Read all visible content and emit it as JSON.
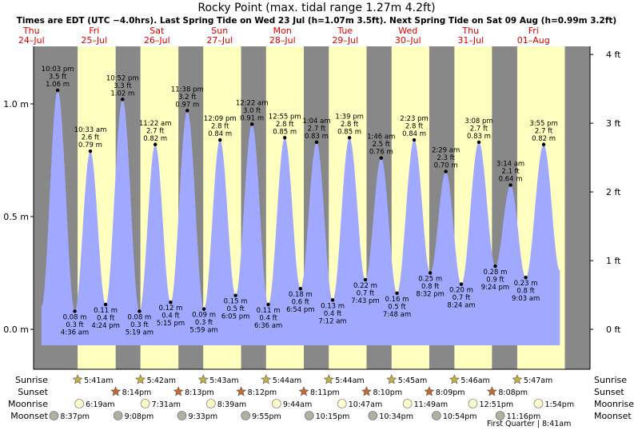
{
  "title": "Rocky Point (max. tidal range 1.27m 4.2ft)",
  "subtitle": "Times are EDT (UTC −4.0hrs). Last Spring Tide on Wed 23 Jul (h=1.07m 3.5ft). Next Spring Tide on Sat 09 Aug (h=0.99m 3.2ft)",
  "colors": {
    "night": "#888888",
    "day": "#ffffc0",
    "tide_fill": "#a0a8ff",
    "date_red": "#e00000",
    "sun": "#c8b040",
    "sunset_star": "#c86830",
    "moon_rise": "#ffffd0",
    "moon_set": "#b0b0a0"
  },
  "row_labels": {
    "sunrise": "Sunrise",
    "sunset": "Sunset",
    "moonrise": "Moonrise",
    "moonset": "Moonset"
  },
  "moon_phase_note": "First Quarter | 8:41am",
  "chart_data": {
    "type": "area",
    "y_left": {
      "unit": "m",
      "ticks": [
        0.0,
        0.5,
        1.0
      ],
      "labels": [
        "0.0 m",
        "0.5 m",
        "1.0 m"
      ],
      "range": [
        -0.16,
        1.36
      ]
    },
    "y_right": {
      "unit": "ft",
      "ticks": [
        0,
        1,
        2,
        3,
        4
      ],
      "labels": [
        "0 ft",
        "1 ft",
        "2 ft",
        "3 ft",
        "4 ft"
      ]
    },
    "days": [
      {
        "day": "Thu",
        "date": "24–Jul"
      },
      {
        "day": "Fri",
        "date": "25–Jul"
      },
      {
        "day": "Sat",
        "date": "26–Jul"
      },
      {
        "day": "Sun",
        "date": "27–Jul"
      },
      {
        "day": "Mon",
        "date": "28–Jul"
      },
      {
        "day": "Tue",
        "date": "29–Jul"
      },
      {
        "day": "Wed",
        "date": "30–Jul"
      },
      {
        "day": "Thu",
        "date": "31–Jul"
      },
      {
        "day": "Fri",
        "date": "01–Aug"
      }
    ],
    "tides": [
      {
        "type": "high",
        "time": "10:03 pm",
        "ft": "3.5 ft",
        "m": 1.06,
        "ml": "1.06 m"
      },
      {
        "type": "low",
        "time": "4:36 am",
        "ft": "0.3 ft",
        "m": 0.08,
        "ml": "0.08 m"
      },
      {
        "type": "high",
        "time": "10:33 am",
        "ft": "2.6 ft",
        "m": 0.79,
        "ml": "0.79 m"
      },
      {
        "type": "low",
        "time": "4:24 pm",
        "ft": "0.4 ft",
        "m": 0.11,
        "ml": "0.11 m"
      },
      {
        "type": "high",
        "time": "10:52 pm",
        "ft": "3.3 ft",
        "m": 1.02,
        "ml": "1.02 m"
      },
      {
        "type": "low",
        "time": "5:19 am",
        "ft": "0.3 ft",
        "m": 0.08,
        "ml": "0.08 m"
      },
      {
        "type": "high",
        "time": "11:22 am",
        "ft": "2.7 ft",
        "m": 0.82,
        "ml": "0.82 m"
      },
      {
        "type": "low",
        "time": "5:15 pm",
        "ft": "0.4 ft",
        "m": 0.12,
        "ml": "0.12 m"
      },
      {
        "type": "high",
        "time": "11:38 pm",
        "ft": "3.2 ft",
        "m": 0.97,
        "ml": "0.97 m"
      },
      {
        "type": "low",
        "time": "5:59 am",
        "ft": "0.3 ft",
        "m": 0.09,
        "ml": "0.09 m"
      },
      {
        "type": "high",
        "time": "12:09 pm",
        "ft": "2.8 ft",
        "m": 0.84,
        "ml": "0.84 m"
      },
      {
        "type": "low",
        "time": "6:05 pm",
        "ft": "0.5 ft",
        "m": 0.15,
        "ml": "0.15 m"
      },
      {
        "type": "high",
        "time": "12:22 am",
        "ft": "3.0 ft",
        "m": 0.91,
        "ml": "0.91 m"
      },
      {
        "type": "low",
        "time": "6:36 am",
        "ft": "0.4 ft",
        "m": 0.11,
        "ml": "0.11 m"
      },
      {
        "type": "high",
        "time": "12:55 pm",
        "ft": "2.8 ft",
        "m": 0.85,
        "ml": "0.85 m"
      },
      {
        "type": "low",
        "time": "6:54 pm",
        "ft": "0.6 ft",
        "m": 0.18,
        "ml": "0.18 m"
      },
      {
        "type": "high",
        "time": "1:04 am",
        "ft": "2.7 ft",
        "m": 0.83,
        "ml": "0.83 m"
      },
      {
        "type": "low",
        "time": "7:12 am",
        "ft": "0.4 ft",
        "m": 0.13,
        "ml": "0.13 m"
      },
      {
        "type": "high",
        "time": "1:39 pm",
        "ft": "2.8 ft",
        "m": 0.85,
        "ml": "0.85 m"
      },
      {
        "type": "low",
        "time": "7:43 pm",
        "ft": "0.7 ft",
        "m": 0.22,
        "ml": "0.22 m"
      },
      {
        "type": "high",
        "time": "1:46 am",
        "ft": "2.5 ft",
        "m": 0.76,
        "ml": "0.76 m"
      },
      {
        "type": "low",
        "time": "7:48 am",
        "ft": "0.5 ft",
        "m": 0.16,
        "ml": "0.16 m"
      },
      {
        "type": "high",
        "time": "2:23 pm",
        "ft": "2.8 ft",
        "m": 0.84,
        "ml": "0.84 m"
      },
      {
        "type": "low",
        "time": "8:32 pm",
        "ft": "0.8 ft",
        "m": 0.25,
        "ml": "0.25 m"
      },
      {
        "type": "high",
        "time": "2:29 am",
        "ft": "2.3 ft",
        "m": 0.7,
        "ml": "0.70 m"
      },
      {
        "type": "low",
        "time": "8:24 am",
        "ft": "0.7 ft",
        "m": 0.2,
        "ml": "0.20 m"
      },
      {
        "type": "high",
        "time": "3:08 pm",
        "ft": "2.7 ft",
        "m": 0.83,
        "ml": "0.83 m"
      },
      {
        "type": "low",
        "time": "9:24 pm",
        "ft": "0.9 ft",
        "m": 0.28,
        "ml": "0.28 m"
      },
      {
        "type": "high",
        "time": "3:14 am",
        "ft": "2.1 ft",
        "m": 0.64,
        "ml": "0.64 m"
      },
      {
        "type": "low",
        "time": "9:03 am",
        "ft": "0.8 ft",
        "m": 0.23,
        "ml": "0.23 m"
      },
      {
        "type": "high",
        "time": "3:55 pm",
        "ft": "2.7 ft",
        "m": 0.82,
        "ml": "0.82 m"
      }
    ],
    "sunrise": [
      "5:41am",
      "5:42am",
      "5:43am",
      "5:44am",
      "5:44am",
      "5:45am",
      "5:46am",
      "5:47am"
    ],
    "sunset": [
      "8:14pm",
      "8:13pm",
      "8:12pm",
      "8:11pm",
      "8:10pm",
      "8:09pm",
      "8:08pm"
    ],
    "moonrise": [
      "6:19am",
      "7:31am",
      "8:39am",
      "9:44am",
      "10:47am",
      "11:49am",
      "12:51pm",
      "1:54pm"
    ],
    "moonset": [
      "8:37pm",
      "9:08pm",
      "9:33pm",
      "9:55pm",
      "10:15pm",
      "10:34pm",
      "10:54pm",
      "11:16pm"
    ]
  }
}
